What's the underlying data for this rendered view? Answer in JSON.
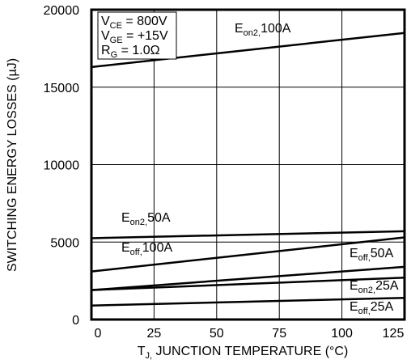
{
  "chart_data": {
    "type": "line",
    "x_label": "TJ, JUNCTION TEMPERATURE (°C)",
    "y_label": "SWITCHING ENERGY LOSSES (µJ)",
    "annotations": [
      "VCE = 800V",
      "VGE = +15V",
      "RG = 1.0Ω"
    ],
    "x": [
      0,
      125
    ],
    "series": [
      {
        "name": "Eon2,100A",
        "color": "#000000",
        "values": [
          16300,
          18500
        ]
      },
      {
        "name": "Eon2,50A",
        "color": "#000000",
        "values": [
          5250,
          5700
        ]
      },
      {
        "name": "Eoff,100A",
        "color": "#000000",
        "values": [
          3100,
          5300
        ]
      },
      {
        "name": "Eoff,50A",
        "color": "#000000",
        "values": [
          1900,
          3400
        ]
      },
      {
        "name": "Eon2,25A",
        "color": "#000000",
        "values": [
          1900,
          2700
        ]
      },
      {
        "name": "Eoff,25A",
        "color": "#000000",
        "values": [
          900,
          1400
        ]
      }
    ],
    "xlim": [
      0,
      125
    ],
    "xticks": [
      0,
      25,
      50,
      75,
      100,
      125
    ],
    "ylim": [
      0,
      20000
    ],
    "yticks": [
      0,
      5000,
      10000,
      15000,
      20000
    ],
    "grid": true
  }
}
